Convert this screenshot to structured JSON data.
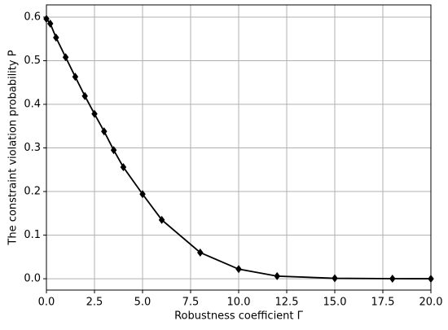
{
  "chart_data": {
    "type": "line",
    "x_label": "Robustness coefficient Γ",
    "y_label": "The constraint violation probability P",
    "x": [
      0,
      0.2,
      0.5,
      1,
      1.5,
      2,
      2.5,
      3,
      3.5,
      4,
      5,
      6,
      8,
      10,
      12,
      15,
      18,
      20
    ],
    "series": [
      {
        "name": "P",
        "color": "#000000",
        "values": [
          0.596,
          0.585,
          0.553,
          0.508,
          0.463,
          0.419,
          0.378,
          0.338,
          0.295,
          0.256,
          0.194,
          0.135,
          0.06,
          0.022,
          0.006,
          0.001,
          0.0002,
          0
        ]
      }
    ],
    "xlim": [
      0,
      20
    ],
    "ylim": [
      -0.026,
      0.628
    ],
    "xticks": [
      {
        "value": 0,
        "label": "0.0"
      },
      2.5,
      {
        "value": 5,
        "label": "5.0"
      },
      7.5,
      {
        "value": 10,
        "label": "10.0"
      },
      12.5,
      {
        "value": 15,
        "label": "15.0"
      },
      17.5,
      {
        "value": 20,
        "label": "20.0"
      }
    ],
    "yticks": [
      {
        "value": 0,
        "label": "0.0"
      },
      0.1,
      0.2,
      0.3,
      0.4,
      0.5,
      0.6
    ],
    "grid": true
  }
}
